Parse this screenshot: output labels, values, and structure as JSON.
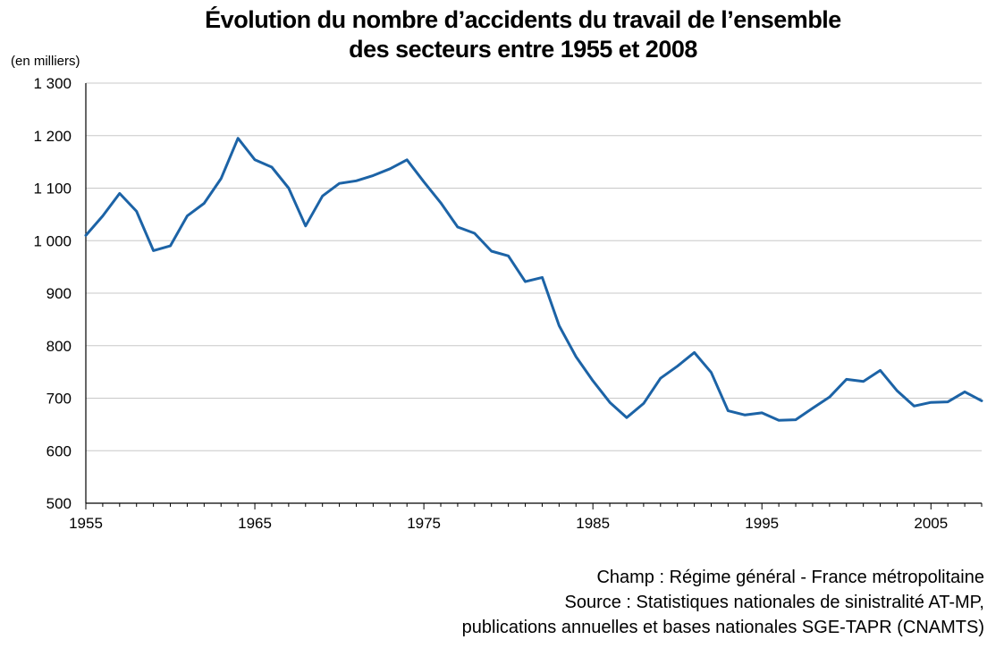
{
  "chart_data": {
    "type": "line",
    "title_lines": [
      "Évolution du nombre d’accidents du travail de l’ensemble",
      "des secteurs entre 1955 et 2008"
    ],
    "unit_label": "(en milliers)",
    "xlabel": "",
    "ylabel": "",
    "xlim": [
      1955,
      2008
    ],
    "ylim": [
      500,
      1300
    ],
    "x_ticks": [
      1955,
      1965,
      1975,
      1985,
      1995,
      2005
    ],
    "y_ticks": [
      500,
      600,
      700,
      800,
      900,
      1000,
      1100,
      1200,
      1300
    ],
    "y_tick_labels": [
      "500",
      "600",
      "700",
      "800",
      "900",
      "1 000",
      "1 100",
      "1 200",
      "1 300"
    ],
    "grid": "horizontal",
    "line_color": "#1c63a6",
    "series": [
      {
        "x": [
          1955,
          1956,
          1957,
          1958,
          1959,
          1960,
          1961,
          1962,
          1963,
          1964,
          1965,
          1966,
          1967,
          1968,
          1969,
          1970,
          1971,
          1972,
          1973,
          1974,
          1975,
          1976,
          1977,
          1978,
          1979,
          1980,
          1981,
          1982,
          1983,
          1984,
          1985,
          1986,
          1987,
          1988,
          1989,
          1990,
          1991,
          1992,
          1993,
          1994,
          1995,
          1996,
          1997,
          1998,
          1999,
          2000,
          2001,
          2002,
          2003,
          2004,
          2005,
          2006,
          2007,
          2008
        ],
        "values": [
          1010,
          1047,
          1090,
          1056,
          981,
          990,
          1047,
          1071,
          1118,
          1195,
          1154,
          1140,
          1100,
          1028,
          1085,
          1109,
          1114,
          1124,
          1137,
          1154,
          1112,
          1072,
          1026,
          1014,
          980,
          971,
          922,
          930,
          838,
          779,
          733,
          692,
          663,
          690,
          738,
          761,
          787,
          749,
          676,
          668,
          672,
          658,
          659,
          681,
          702,
          736,
          732,
          753,
          714,
          685,
          692,
          693,
          712,
          695
        ]
      }
    ]
  },
  "footer": {
    "line1": "Champ : Régime général - France métropolitaine",
    "line2": "Source : Statistiques nationales de sinistralité AT-MP,",
    "line3": "publications annuelles et bases nationales SGE-TAPR (CNAMTS)"
  }
}
